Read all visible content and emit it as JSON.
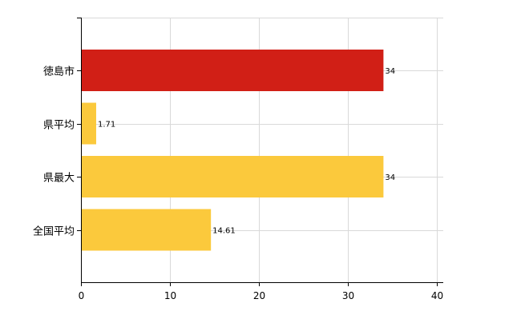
{
  "chart_data": {
    "type": "bar",
    "orientation": "horizontal",
    "categories": [
      "徳島市",
      "県平均",
      "県最大",
      "全国平均"
    ],
    "values": [
      34,
      1.71,
      34,
      14.61
    ],
    "data_labels": [
      "34",
      "1.71",
      "34",
      "14.61"
    ],
    "bar_colors": [
      "#d11f16",
      "#fbc93c",
      "#fbc93c",
      "#fbc93c"
    ],
    "xlim": [
      0,
      40
    ],
    "x_ticks": [
      0,
      10,
      20,
      30,
      40
    ],
    "x_tick_labels": [
      "0",
      "10",
      "20",
      "30",
      "40"
    ],
    "grid": true,
    "title": "",
    "xlabel": "",
    "ylabel": ""
  }
}
